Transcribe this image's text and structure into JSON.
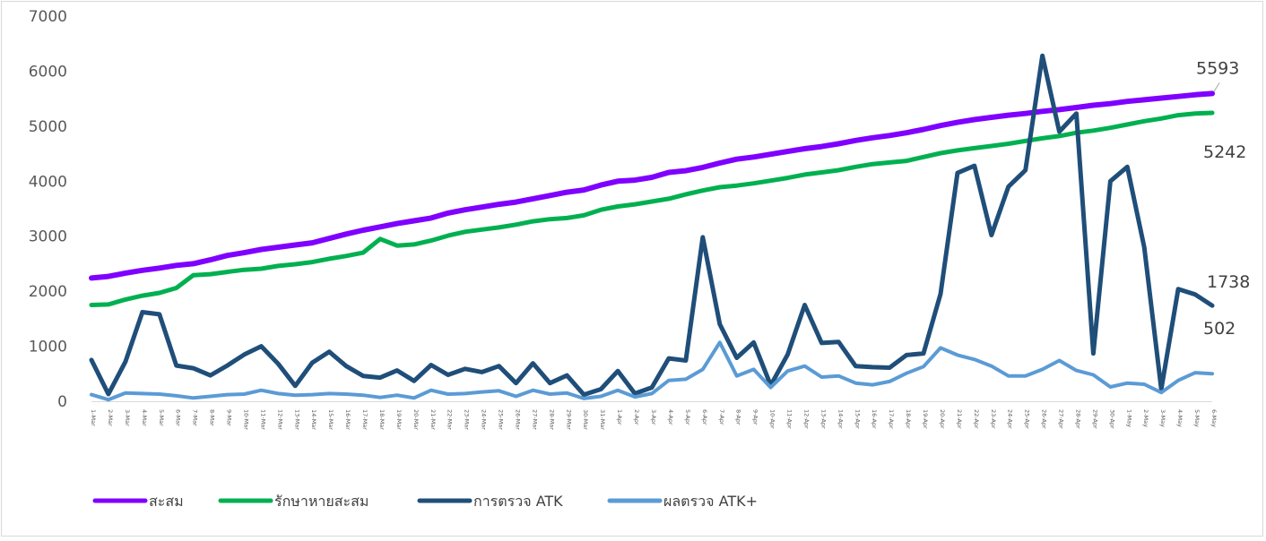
{
  "chart_data": {
    "type": "line",
    "title": "",
    "xlabel": "",
    "ylabel": "",
    "ylim": [
      0,
      7000
    ],
    "yticks": [
      0,
      1000,
      2000,
      3000,
      4000,
      5000,
      6000,
      7000
    ],
    "grid": false,
    "legend_position": "bottom-left",
    "categories": [
      "1-Mar",
      "2-Mar",
      "3-Mar",
      "4-Mar",
      "5-Mar",
      "6-Mar",
      "7-Mar",
      "8-Mar",
      "9-Mar",
      "10-Mar",
      "11-Mar",
      "12-Mar",
      "13-Mar",
      "14-Mar",
      "15-Mar",
      "16-Mar",
      "17-Mar",
      "18-Mar",
      "19-Mar",
      "20-Mar",
      "21-Mar",
      "22-Mar",
      "23-Mar",
      "24-Mar",
      "25-Mar",
      "26-Mar",
      "27-Mar",
      "28-Mar",
      "29-Mar",
      "30-Mar",
      "31-Mar",
      "1-Apr",
      "2-Apr",
      "3-Apr",
      "4-Apr",
      "5-Apr",
      "6-Apr",
      "7-Apr",
      "8-Apr",
      "9-Apr",
      "10-Apr",
      "11-Apr",
      "12-Apr",
      "13-Apr",
      "14-Apr",
      "15-Apr",
      "16-Apr",
      "17-Apr",
      "18-Apr",
      "19-Apr",
      "20-Apr",
      "21-Apr",
      "22-Apr",
      "23-Apr",
      "24-Apr",
      "25-Apr",
      "26-Apr",
      "27-Apr",
      "28-Apr",
      "29-Apr",
      "30-Apr",
      "1-May",
      "2-May",
      "3-May",
      "4-May",
      "5-May",
      "6-May"
    ],
    "series": [
      {
        "name": "สะสม",
        "color": "#7f00ff",
        "end_label": "5593",
        "values": [
          2240,
          2270,
          2330,
          2380,
          2420,
          2470,
          2500,
          2570,
          2650,
          2700,
          2760,
          2800,
          2840,
          2880,
          2960,
          3040,
          3110,
          3170,
          3230,
          3280,
          3330,
          3420,
          3480,
          3530,
          3580,
          3620,
          3680,
          3740,
          3800,
          3840,
          3930,
          4000,
          4020,
          4070,
          4160,
          4190,
          4250,
          4330,
          4400,
          4440,
          4490,
          4540,
          4590,
          4630,
          4680,
          4740,
          4790,
          4830,
          4880,
          4940,
          5010,
          5070,
          5120,
          5160,
          5200,
          5230,
          5270,
          5300,
          5340,
          5380,
          5410,
          5450,
          5480,
          5510,
          5540,
          5570,
          5593
        ]
      },
      {
        "name": "รักษาหายสะสม",
        "color": "#00b050",
        "end_label": "5242",
        "values": [
          1750,
          1760,
          1850,
          1920,
          1970,
          2060,
          2290,
          2310,
          2350,
          2390,
          2410,
          2460,
          2490,
          2530,
          2590,
          2640,
          2700,
          2950,
          2830,
          2850,
          2920,
          3010,
          3080,
          3120,
          3160,
          3210,
          3270,
          3310,
          3330,
          3380,
          3480,
          3540,
          3580,
          3630,
          3680,
          3760,
          3830,
          3890,
          3920,
          3960,
          4010,
          4060,
          4120,
          4160,
          4200,
          4260,
          4310,
          4340,
          4370,
          4440,
          4510,
          4560,
          4600,
          4640,
          4680,
          4730,
          4780,
          4820,
          4880,
          4920,
          4970,
          5030,
          5090,
          5140,
          5200,
          5230,
          5242
        ]
      },
      {
        "name": "การตรวจ ATK",
        "color": "#1f4e79",
        "end_label": "1738",
        "values": [
          750,
          130,
          720,
          1620,
          1580,
          650,
          600,
          470,
          650,
          850,
          1000,
          680,
          280,
          700,
          900,
          640,
          460,
          430,
          560,
          370,
          660,
          480,
          590,
          530,
          640,
          330,
          690,
          330,
          470,
          120,
          220,
          550,
          140,
          250,
          780,
          740,
          2980,
          1400,
          790,
          1070,
          290,
          850,
          1750,
          1060,
          1080,
          640,
          620,
          610,
          840,
          870,
          1950,
          4150,
          4280,
          3020,
          3900,
          4200,
          6280,
          4900,
          5230,
          870,
          4000,
          4260,
          2800,
          220,
          2040,
          1940,
          1738
        ]
      },
      {
        "name": "ผลตรวจ ATK+",
        "color": "#5b9bd5",
        "end_label": "502",
        "values": [
          120,
          30,
          150,
          140,
          130,
          100,
          60,
          90,
          120,
          130,
          200,
          140,
          110,
          120,
          140,
          130,
          110,
          70,
          110,
          60,
          200,
          130,
          140,
          170,
          190,
          90,
          200,
          130,
          150,
          50,
          90,
          200,
          80,
          140,
          380,
          400,
          580,
          1070,
          460,
          580,
          250,
          550,
          640,
          440,
          460,
          330,
          300,
          360,
          510,
          630,
          970,
          840,
          760,
          640,
          460,
          460,
          580,
          740,
          560,
          480,
          260,
          330,
          310,
          160,
          380,
          520,
          502
        ]
      }
    ]
  }
}
